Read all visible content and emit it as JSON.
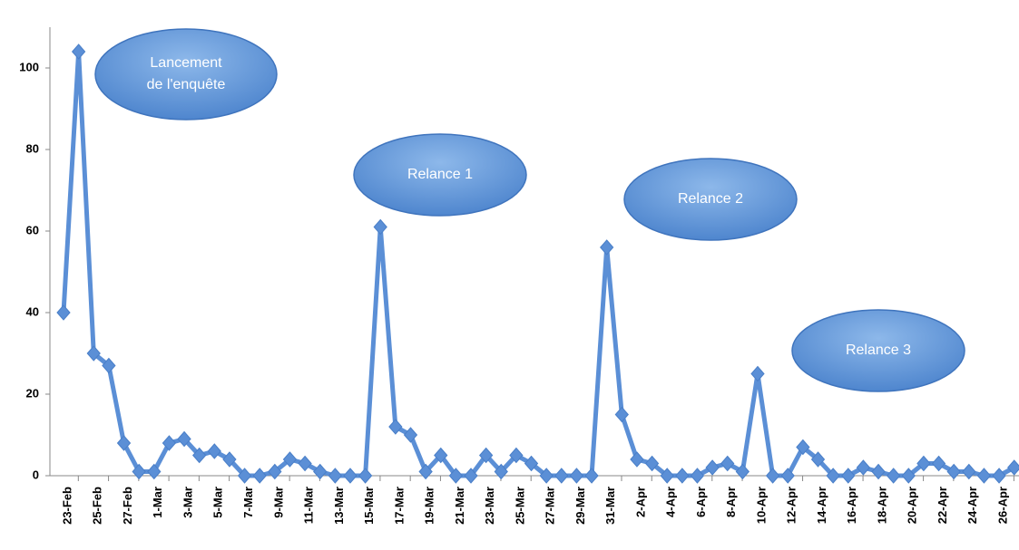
{
  "chart_data": {
    "type": "line",
    "categories": [
      "23-Feb",
      null,
      "25-Feb",
      null,
      "27-Feb",
      null,
      "1-Mar",
      null,
      "3-Mar",
      null,
      "5-Mar",
      null,
      "7-Mar",
      null,
      "9-Mar",
      null,
      "11-Mar",
      null,
      "13-Mar",
      null,
      "15-Mar",
      null,
      "17-Mar",
      null,
      "19-Mar",
      null,
      "21-Mar",
      null,
      "23-Mar",
      null,
      "25-Mar",
      null,
      "27-Mar",
      null,
      "29-Mar",
      null,
      "31-Mar",
      null,
      "2-Apr",
      null,
      "4-Apr",
      null,
      "6-Apr",
      null,
      "8-Apr",
      null,
      "10-Apr",
      null,
      "12-Apr",
      null,
      "14-Apr",
      null,
      "16-Apr",
      null,
      "18-Apr",
      null,
      "20-Apr",
      null,
      "22-Apr",
      null,
      "24-Apr",
      null,
      "26-Apr",
      null
    ],
    "series": [
      {
        "color": "#5b8fd6",
        "values": [
          40,
          104,
          30,
          27,
          8,
          1,
          1,
          8,
          9,
          5,
          6,
          4,
          0,
          0,
          1,
          4,
          3,
          1,
          0,
          0,
          0,
          61,
          12,
          10,
          1,
          5,
          0,
          0,
          5,
          1,
          5,
          3,
          0,
          0,
          0,
          0,
          56,
          15,
          4,
          3,
          0,
          0,
          0,
          2,
          3,
          1,
          25,
          0,
          0,
          7,
          4,
          0,
          0,
          2,
          1,
          0,
          0,
          3,
          3,
          1,
          1,
          0,
          0,
          2
        ]
      }
    ],
    "ylim": [
      0,
      110
    ],
    "yticks": [
      0,
      20,
      40,
      60,
      80,
      100
    ],
    "annotations": [
      [
        "Lancement",
        "de l'enquête"
      ],
      [
        "Relance 1"
      ],
      [
        "Relance 2"
      ],
      [
        "Relance 3"
      ]
    ]
  }
}
